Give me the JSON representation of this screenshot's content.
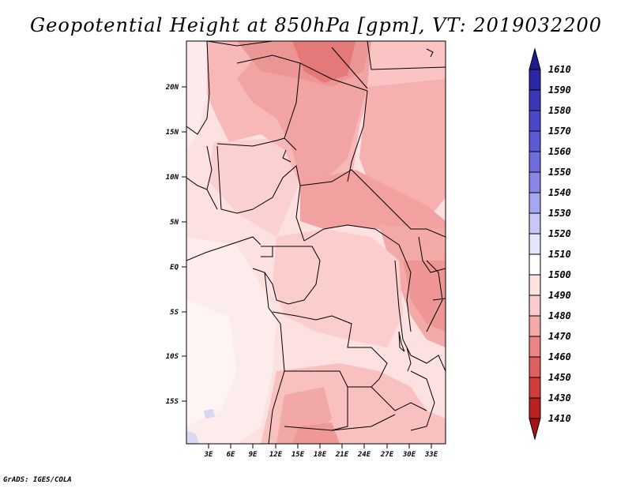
{
  "title": "Geopotential Height at 850hPa [gpm], VT: 2019032200",
  "credit": "GrADS: IGES/COLA",
  "map": {
    "lat_ticks": [
      "20N",
      "15N",
      "10N",
      "5N",
      "EQ",
      "5S",
      "10S",
      "15S"
    ],
    "lon_ticks": [
      "3E",
      "6E",
      "9E",
      "12E",
      "15E",
      "18E",
      "21E",
      "24E",
      "27E",
      "30E",
      "33E"
    ]
  },
  "legend": {
    "levels": [
      "1610",
      "1590",
      "1580",
      "1570",
      "1560",
      "1550",
      "1540",
      "1530",
      "1520",
      "1510",
      "1500",
      "1490",
      "1480",
      "1470",
      "1460",
      "1450",
      "1430",
      "1410"
    ],
    "colors": [
      "#1e1b8c",
      "#2a27a6",
      "#3a37bb",
      "#4a48c8",
      "#5c5ad4",
      "#6e6ddd",
      "#8887e6",
      "#a8a6ee",
      "#c8c7f5",
      "#e6e6fb",
      "#ffffff",
      "#fde2e2",
      "#fbcaca",
      "#f5aaaa",
      "#e98585",
      "#df5f5f",
      "#d33c3c",
      "#bb2020",
      "#a31515"
    ]
  }
}
